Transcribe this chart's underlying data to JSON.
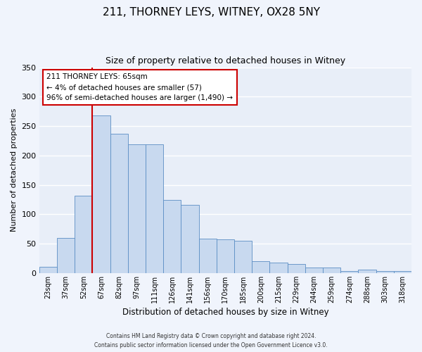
{
  "title": "211, THORNEY LEYS, WITNEY, OX28 5NY",
  "subtitle": "Size of property relative to detached houses in Witney",
  "xlabel": "Distribution of detached houses by size in Witney",
  "ylabel": "Number of detached properties",
  "categories": [
    "23sqm",
    "37sqm",
    "52sqm",
    "67sqm",
    "82sqm",
    "97sqm",
    "111sqm",
    "126sqm",
    "141sqm",
    "156sqm",
    "170sqm",
    "185sqm",
    "200sqm",
    "215sqm",
    "229sqm",
    "244sqm",
    "259sqm",
    "274sqm",
    "288sqm",
    "303sqm",
    "318sqm"
  ],
  "values": [
    11,
    60,
    131,
    268,
    237,
    219,
    219,
    124,
    116,
    59,
    57,
    55,
    20,
    18,
    15,
    10,
    10,
    4,
    6,
    3,
    3
  ],
  "bar_color": "#c8d9ef",
  "bar_edge_color": "#5b8ec4",
  "background_color": "#e8eef8",
  "grid_color": "#ffffff",
  "vline_x_index": 3,
  "vline_color": "#cc0000",
  "ylim": [
    0,
    350
  ],
  "yticks": [
    0,
    50,
    100,
    150,
    200,
    250,
    300,
    350
  ],
  "annotation_title": "211 THORNEY LEYS: 65sqm",
  "annotation_line1": "← 4% of detached houses are smaller (57)",
  "annotation_line2": "96% of semi-detached houses are larger (1,490) →",
  "annotation_box_edge": "#cc0000",
  "footer_line1": "Contains HM Land Registry data © Crown copyright and database right 2024.",
  "footer_line2": "Contains public sector information licensed under the Open Government Licence v3.0."
}
